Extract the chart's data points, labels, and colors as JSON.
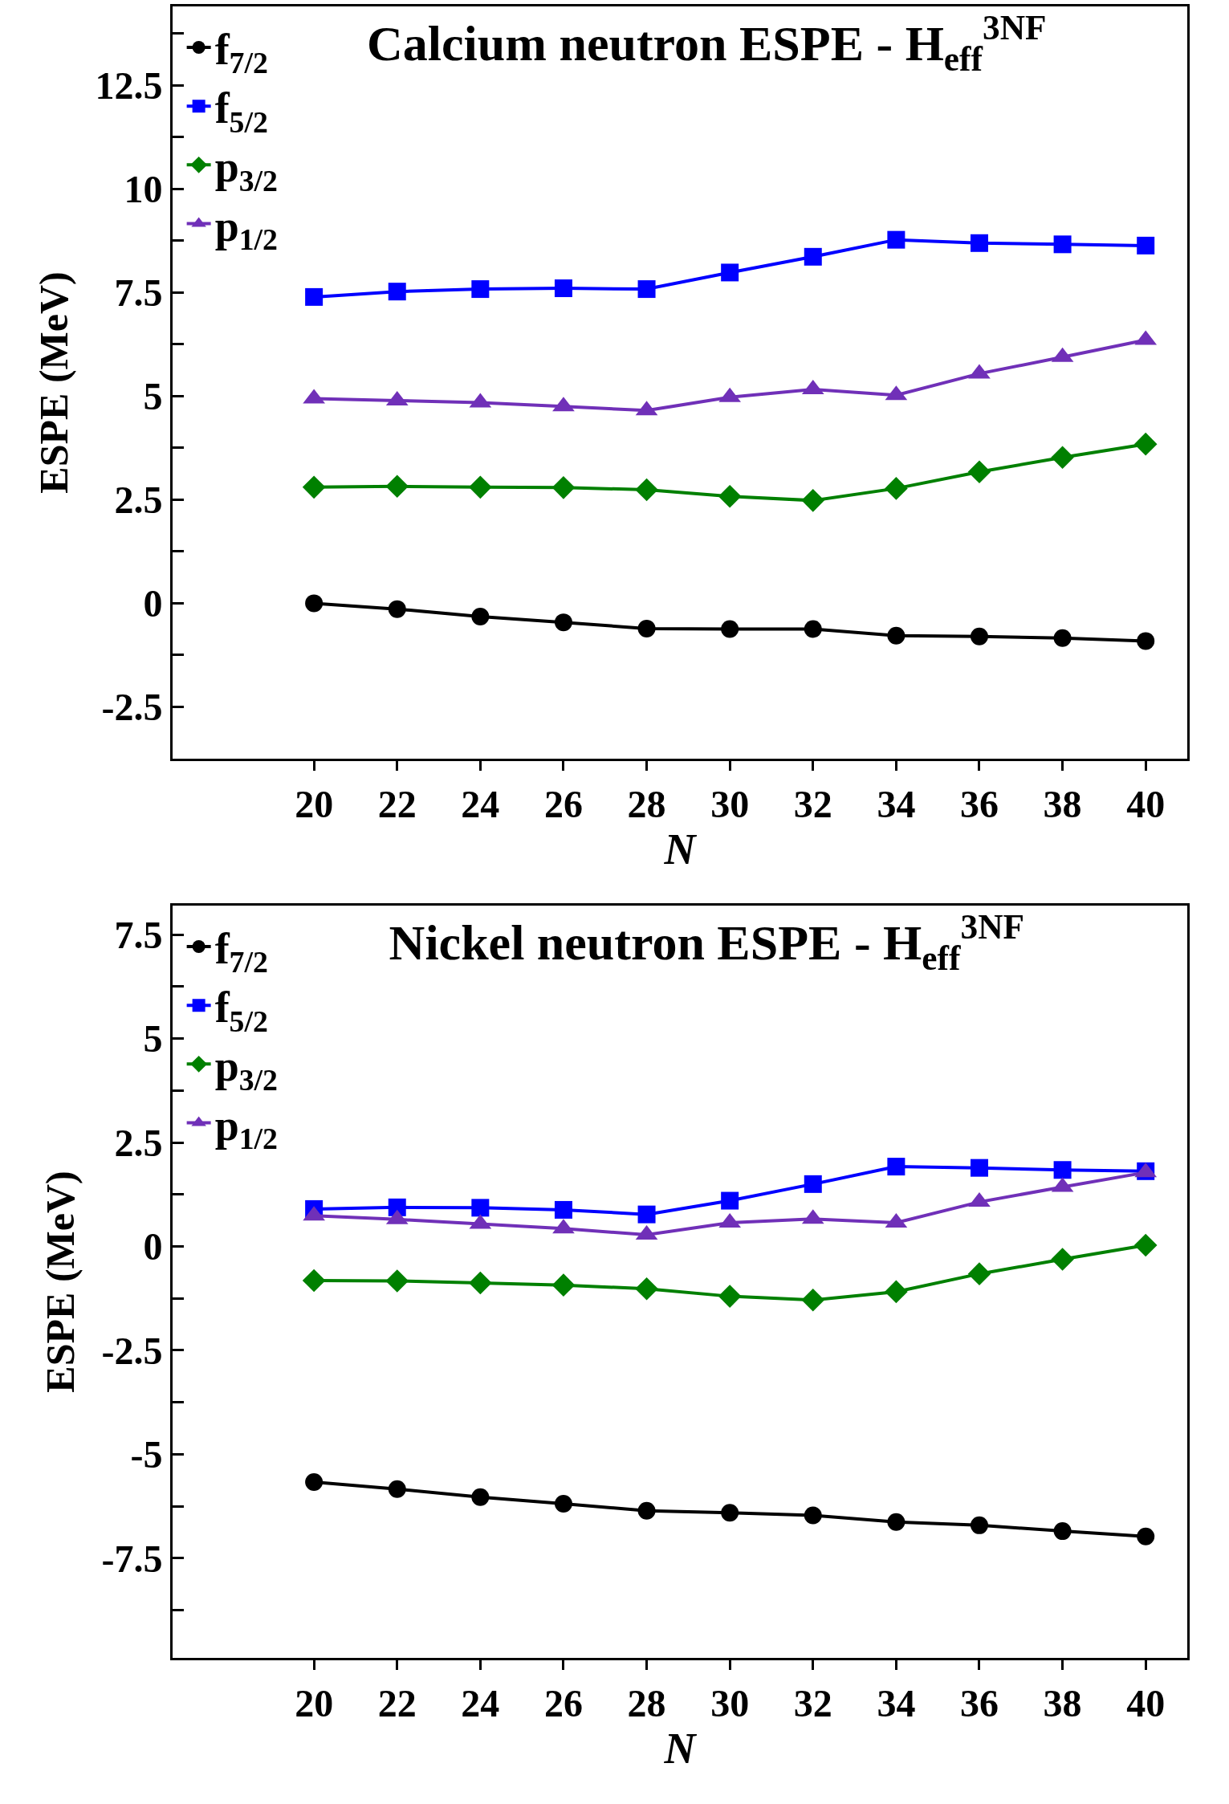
{
  "chart_data": [
    {
      "type": "line",
      "title": "Calcium neutron ESPE - H$_{eff}$$^{3NF}$",
      "xlabel": "N",
      "ylabel": "ESPE (MeV)",
      "legend": "top left",
      "grid": false,
      "line_style": "solid",
      "x": [
        20,
        22,
        24,
        26,
        28,
        30,
        32,
        34,
        36,
        38,
        40
      ],
      "xlim": [
        16.6,
        41
      ],
      "xticks": [
        20,
        22,
        24,
        26,
        28,
        30,
        32,
        34,
        36,
        38,
        40
      ],
      "ylim": [
        -3.75,
        14.4
      ],
      "yticks": [
        {
          "value": -3.75,
          "label": null
        },
        -2.5,
        {
          "value": -1.25,
          "label": null
        },
        0,
        {
          "value": 1.25,
          "label": null
        },
        2.5,
        {
          "value": 3.75,
          "label": null
        },
        5,
        {
          "value": 6.25,
          "label": null
        },
        7.5,
        {
          "value": 8.75,
          "label": null
        },
        10,
        {
          "value": 11.25,
          "label": null
        },
        12.5,
        {
          "value": 13.75,
          "label": null
        }
      ],
      "series": [
        {
          "name": "f$_{7/2}$",
          "color": "#000000",
          "marker": "circle",
          "values": [
            0,
            -0.14,
            -0.32,
            -0.46,
            -0.61,
            -0.62,
            -0.62,
            -0.78,
            -0.8,
            -0.84,
            -0.91
          ]
        },
        {
          "name": "f$_{5/2}$",
          "color": "#0000ff",
          "marker": "square",
          "values": [
            7.39,
            7.52,
            7.58,
            7.6,
            7.58,
            7.98,
            8.36,
            8.77,
            8.69,
            8.66,
            8.63
          ]
        },
        {
          "name": "p$_{3/2}$",
          "color": "#008000",
          "marker": "diamond",
          "values": [
            2.8,
            2.82,
            2.8,
            2.79,
            2.74,
            2.58,
            2.48,
            2.77,
            3.17,
            3.52,
            3.84
          ]
        },
        {
          "name": "p$_{1/2}$",
          "color": "#7030b8",
          "marker": "triangle",
          "values": [
            4.94,
            4.89,
            4.84,
            4.75,
            4.65,
            4.97,
            5.16,
            5.02,
            5.54,
            5.94,
            6.35
          ]
        }
      ]
    },
    {
      "type": "line",
      "title": "Nickel neutron ESPE - H$_{eff}$$^{3NF}$",
      "xlabel": "N",
      "ylabel": "ESPE (MeV)",
      "legend": "top left",
      "grid": false,
      "line_style": "solid",
      "x": [
        20,
        22,
        24,
        26,
        28,
        30,
        32,
        34,
        36,
        38,
        40
      ],
      "xlim": [
        16.6,
        41
      ],
      "xticks": [
        20,
        22,
        24,
        26,
        28,
        30,
        32,
        34,
        36,
        38,
        40
      ],
      "ylim": [
        -9.9,
        8.2
      ],
      "yticks": [
        {
          "value": -8.75,
          "label": null
        },
        -7.5,
        {
          "value": -6.25,
          "label": null
        },
        -5,
        {
          "value": -3.75,
          "label": null
        },
        -2.5,
        {
          "value": -1.25,
          "label": null
        },
        0,
        {
          "value": 1.25,
          "label": null
        },
        2.5,
        {
          "value": 3.75,
          "label": null
        },
        5,
        {
          "value": 6.25,
          "label": null
        },
        7.5
      ],
      "series": [
        {
          "name": "f$_{7/2}$",
          "color": "#000000",
          "marker": "circle",
          "values": [
            -5.67,
            -5.84,
            -6.03,
            -6.19,
            -6.36,
            -6.41,
            -6.47,
            -6.63,
            -6.71,
            -6.85,
            -6.98
          ]
        },
        {
          "name": "f$_{5/2}$",
          "color": "#0000ff",
          "marker": "square",
          "values": [
            0.9,
            0.94,
            0.93,
            0.88,
            0.77,
            1.1,
            1.5,
            1.92,
            1.89,
            1.84,
            1.81
          ]
        },
        {
          "name": "p$_{3/2}$",
          "color": "#008000",
          "marker": "diamond",
          "values": [
            -0.82,
            -0.83,
            -0.88,
            -0.93,
            -1.02,
            -1.2,
            -1.29,
            -1.09,
            -0.66,
            -0.31,
            0.03
          ]
        },
        {
          "name": "p$_{1/2}$",
          "color": "#7030b8",
          "marker": "triangle",
          "values": [
            0.74,
            0.65,
            0.54,
            0.43,
            0.28,
            0.57,
            0.66,
            0.57,
            1.07,
            1.43,
            1.78
          ]
        }
      ]
    }
  ]
}
